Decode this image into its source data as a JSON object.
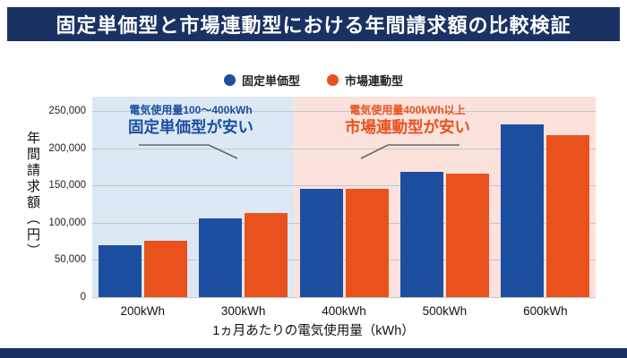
{
  "banner": {
    "title": "固定単価型と市場連動型における年間請求額の比較検証"
  },
  "legend": [
    {
      "label": "固定単価型",
      "color": "#1d4fa0"
    },
    {
      "label": "市場連動型",
      "color": "#e9521d"
    }
  ],
  "annotations": {
    "left": {
      "line1": "電気使用量100〜400kWh",
      "line2": "固定単価型が安い",
      "color": "#1d4fa0"
    },
    "right": {
      "line1": "電気使用量400kWh以上",
      "line2": "市場連動型が安い",
      "color": "#e9521d"
    }
  },
  "chart_data": {
    "type": "bar",
    "title": "固定単価型と市場連動型における年間請求額の比較検証",
    "categories": [
      "200kWh",
      "300kWh",
      "400kWh",
      "500kWh",
      "600kWh"
    ],
    "series": [
      {
        "name": "固定単価型",
        "color": "#1d4fa0",
        "values": [
          70000,
          106000,
          145000,
          168000,
          232000
        ]
      },
      {
        "name": "市場連動型",
        "color": "#e9521d",
        "values": [
          76000,
          113000,
          146000,
          166000,
          218000
        ]
      }
    ],
    "xlabel": "1ヵ月あたりの電気使用量（kWh）",
    "ylabel": "年間請求額（円）",
    "ylim": [
      0,
      250000
    ],
    "yticks": [
      0,
      50000,
      100000,
      150000,
      200000,
      250000
    ],
    "grid": true,
    "legend_position": "top",
    "background_zones": [
      {
        "name": "fixed-cheaper",
        "range": [
          "200kWh",
          "300kWh"
        ],
        "color": "#dce8f4"
      },
      {
        "name": "market-cheaper",
        "range": [
          "400kWh",
          "600kWh"
        ],
        "color": "#fbe2dc"
      }
    ]
  }
}
